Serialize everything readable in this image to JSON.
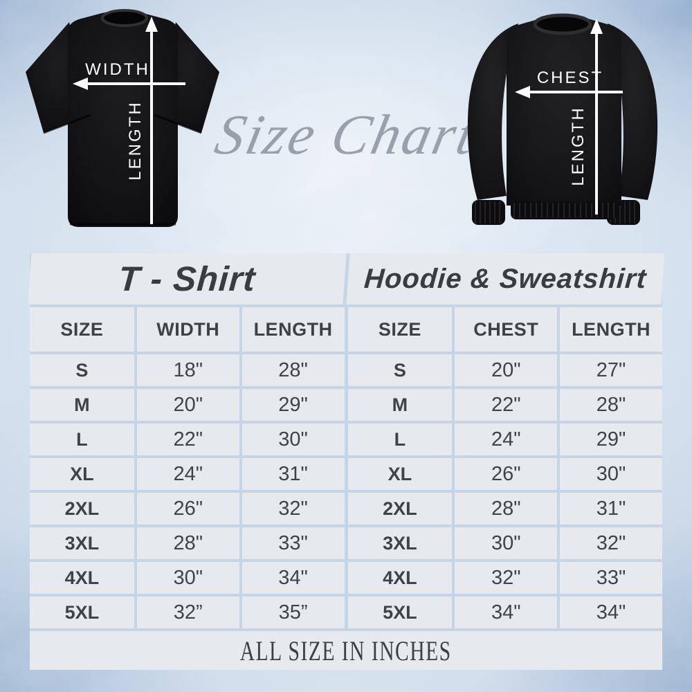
{
  "script_title": "Size Chart",
  "figures": {
    "tshirt": {
      "width_label": "WIDTH",
      "length_label": "LENGTH"
    },
    "hoodie": {
      "chest_label": "CHEST",
      "length_label": "LENGTH"
    }
  },
  "chart_data": [
    {
      "type": "table",
      "title": "T - Shirt",
      "columns": [
        "SIZE",
        "WIDTH",
        "LENGTH"
      ],
      "rows": [
        [
          "S",
          "18\"",
          "28\""
        ],
        [
          "M",
          "20\"",
          "29\""
        ],
        [
          "L",
          "22\"",
          "30\""
        ],
        [
          "XL",
          "24\"",
          "31\""
        ],
        [
          "2XL",
          "26\"",
          "32\""
        ],
        [
          "3XL",
          "28\"",
          "33\""
        ],
        [
          "4XL",
          "30\"",
          "34\""
        ],
        [
          "5XL",
          "32”",
          "35”"
        ]
      ]
    },
    {
      "type": "table",
      "title": "Hoodie & Sweatshirt",
      "columns": [
        "SIZE",
        "CHEST",
        "LENGTH"
      ],
      "rows": [
        [
          "S",
          "20\"",
          "27\""
        ],
        [
          "M",
          "22\"",
          "28\""
        ],
        [
          "L",
          "24\"",
          "29\""
        ],
        [
          "XL",
          "26\"",
          "30\""
        ],
        [
          "2XL",
          "28\"",
          "31\""
        ],
        [
          "3XL",
          "30\"",
          "32\""
        ],
        [
          "4XL",
          "32\"",
          "33\""
        ],
        [
          "5XL",
          "34\"",
          "34\""
        ]
      ]
    }
  ],
  "footer": "ALL SIZE IN INCHES",
  "colors": {
    "table_cell": "#e6eaef",
    "table_border": "#c6d5e5",
    "table_text": "#3f4347",
    "garment": "#141414",
    "arrow": "#ffffff",
    "script_text": "#98a1ab",
    "background_corner": "#7a98c0",
    "background_center": "#eef3f8"
  }
}
